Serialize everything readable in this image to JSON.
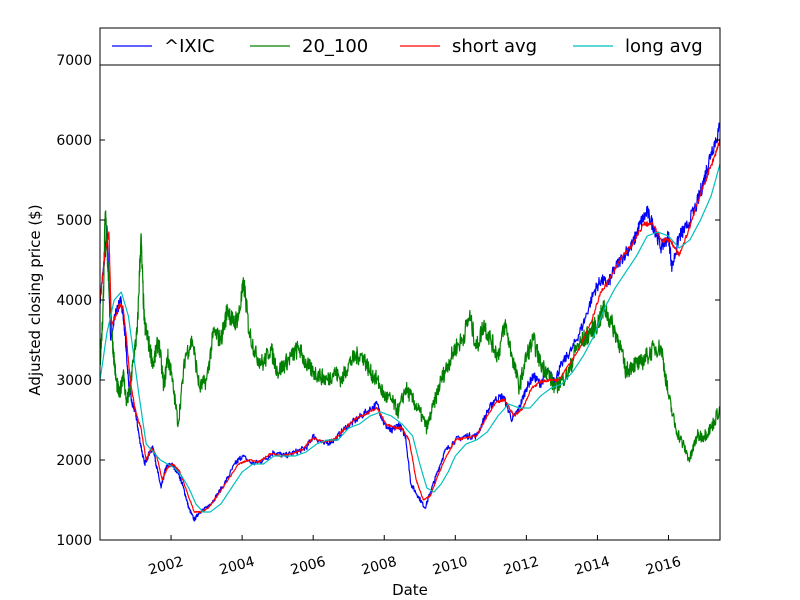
{
  "chart_data": {
    "type": "line",
    "title": "",
    "xlabel": "Date",
    "ylabel": "Adjusted closing price ($)",
    "xlim": [
      2000.0,
      2017.45
    ],
    "ylim": [
      1000,
      7000
    ],
    "x_ticks": [
      2002,
      2004,
      2006,
      2008,
      2010,
      2012,
      2014,
      2016
    ],
    "x_tick_labels": [
      "2002",
      "2004",
      "2006",
      "2008",
      "2010",
      "2012",
      "2014",
      "2016"
    ],
    "y_ticks": [
      1000,
      2000,
      3000,
      4000,
      5000,
      6000,
      7000
    ],
    "y_tick_labels": [
      "1000",
      "2000",
      "3000",
      "4000",
      "5000",
      "6000",
      "7000"
    ],
    "grid": false,
    "legend_position": "top",
    "series": [
      {
        "name": "^IXIC",
        "color": "#0000ff",
        "x": [
          2000.0,
          2000.15,
          2000.2,
          2000.3,
          2000.42,
          2000.5,
          2000.6,
          2000.7,
          2000.8,
          2000.9,
          2001.0,
          2001.1,
          2001.25,
          2001.4,
          2001.5,
          2001.6,
          2001.72,
          2001.85,
          2002.0,
          2002.2,
          2002.35,
          2002.5,
          2002.65,
          2002.8,
          2003.0,
          2003.2,
          2003.5,
          2003.8,
          2004.0,
          2004.3,
          2004.6,
          2004.9,
          2005.2,
          2005.5,
          2005.8,
          2006.0,
          2006.3,
          2006.6,
          2006.9,
          2007.2,
          2007.5,
          2007.8,
          2008.0,
          2008.2,
          2008.4,
          2008.6,
          2008.75,
          2008.95,
          2009.15,
          2009.3,
          2009.5,
          2009.7,
          2010.0,
          2010.3,
          2010.6,
          2010.9,
          2011.1,
          2011.35,
          2011.6,
          2011.8,
          2012.0,
          2012.2,
          2012.4,
          2012.6,
          2012.8,
          2013.0,
          2013.3,
          2013.6,
          2013.9,
          2014.1,
          2014.3,
          2014.5,
          2014.8,
          2015.0,
          2015.2,
          2015.4,
          2015.6,
          2015.8,
          2016.0,
          2016.1,
          2016.3,
          2016.5,
          2016.8,
          2017.0,
          2017.2,
          2017.45
        ],
        "values": [
          4000,
          4600,
          4900,
          3500,
          3800,
          3900,
          4000,
          3600,
          3000,
          2700,
          2600,
          2300,
          1950,
          2100,
          2150,
          1900,
          1650,
          1900,
          1950,
          1850,
          1650,
          1400,
          1250,
          1350,
          1400,
          1500,
          1700,
          1950,
          2050,
          1950,
          2000,
          2100,
          2050,
          2100,
          2150,
          2300,
          2200,
          2250,
          2400,
          2500,
          2600,
          2700,
          2450,
          2350,
          2450,
          2300,
          1700,
          1550,
          1400,
          1600,
          1850,
          2100,
          2250,
          2300,
          2300,
          2600,
          2750,
          2800,
          2500,
          2650,
          2900,
          3050,
          2950,
          3100,
          3000,
          3200,
          3400,
          3700,
          4100,
          4250,
          4200,
          4400,
          4600,
          4700,
          4950,
          5100,
          4900,
          4650,
          4800,
          4400,
          4800,
          4900,
          5200,
          5500,
          5850,
          6150
        ]
      },
      {
        "name": "20_100",
        "color": "#008000",
        "x": [
          2000.0,
          2000.08,
          2000.15,
          2000.25,
          2000.35,
          2000.45,
          2000.55,
          2000.65,
          2000.75,
          2000.85,
          2000.95,
          2001.05,
          2001.15,
          2001.25,
          2001.35,
          2001.5,
          2001.65,
          2001.8,
          2001.9,
          2002.0,
          2002.2,
          2002.4,
          2002.6,
          2002.8,
          2003.0,
          2003.2,
          2003.4,
          2003.6,
          2003.75,
          2003.9,
          2004.05,
          2004.2,
          2004.4,
          2004.6,
          2004.8,
          2005.0,
          2005.2,
          2005.4,
          2005.6,
          2005.8,
          2006.0,
          2006.2,
          2006.4,
          2006.6,
          2006.8,
          2007.0,
          2007.2,
          2007.4,
          2007.6,
          2007.8,
          2008.0,
          2008.2,
          2008.4,
          2008.6,
          2008.8,
          2009.0,
          2009.2,
          2009.4,
          2009.6,
          2009.8,
          2010.0,
          2010.2,
          2010.4,
          2010.6,
          2010.8,
          2011.0,
          2011.2,
          2011.4,
          2011.6,
          2011.8,
          2012.0,
          2012.2,
          2012.4,
          2012.6,
          2012.8,
          2013.0,
          2013.2,
          2013.4,
          2013.6,
          2013.8,
          2014.0,
          2014.2,
          2014.4,
          2014.6,
          2014.8,
          2015.0,
          2015.2,
          2015.4,
          2015.6,
          2015.8,
          2016.0,
          2016.2,
          2016.4,
          2016.6,
          2016.8,
          2017.0,
          2017.2,
          2017.45
        ],
        "values": [
          3200,
          3800,
          5100,
          4200,
          3500,
          3000,
          2800,
          3100,
          2700,
          2900,
          3300,
          3600,
          4800,
          3700,
          3500,
          3200,
          3500,
          2900,
          3300,
          3100,
          2450,
          3300,
          3500,
          2900,
          3000,
          3600,
          3500,
          3900,
          3700,
          3800,
          4200,
          3600,
          3300,
          3200,
          3400,
          3100,
          3200,
          3300,
          3400,
          3200,
          3100,
          3050,
          3000,
          3100,
          3000,
          3200,
          3300,
          3300,
          3100,
          3000,
          2800,
          2750,
          2600,
          2900,
          2750,
          2600,
          2400,
          2700,
          3000,
          3200,
          3400,
          3500,
          3800,
          3400,
          3700,
          3500,
          3300,
          3700,
          3300,
          2900,
          3300,
          3500,
          3200,
          3100,
          2900,
          3000,
          3100,
          3400,
          3500,
          3600,
          3700,
          3900,
          3700,
          3500,
          3100,
          3200,
          3200,
          3300,
          3400,
          3400,
          2800,
          2400,
          2200,
          2000,
          2300,
          2300,
          2400,
          2650
        ]
      },
      {
        "name": "short avg",
        "color": "#ff0000",
        "x": [
          2000.0,
          2000.15,
          2000.25,
          2000.32,
          2000.45,
          2000.55,
          2000.65,
          2000.75,
          2000.85,
          2001.0,
          2001.15,
          2001.3,
          2001.45,
          2001.6,
          2001.75,
          2001.9,
          2002.05,
          2002.25,
          2002.45,
          2002.65,
          2002.85,
          2003.05,
          2003.3,
          2003.6,
          2003.9,
          2004.2,
          2004.5,
          2004.8,
          2005.1,
          2005.4,
          2005.7,
          2006.0,
          2006.3,
          2006.6,
          2006.9,
          2007.2,
          2007.5,
          2007.8,
          2008.05,
          2008.3,
          2008.5,
          2008.7,
          2008.9,
          2009.1,
          2009.3,
          2009.5,
          2009.75,
          2010.0,
          2010.3,
          2010.6,
          2010.9,
          2011.15,
          2011.4,
          2011.65,
          2011.9,
          2012.15,
          2012.4,
          2012.65,
          2012.9,
          2013.2,
          2013.5,
          2013.8,
          2014.1,
          2014.4,
          2014.7,
          2015.0,
          2015.3,
          2015.55,
          2015.8,
          2016.05,
          2016.3,
          2016.55,
          2016.8,
          2017.05,
          2017.3,
          2017.45
        ],
        "values": [
          4000,
          4600,
          4850,
          3700,
          3800,
          3950,
          3900,
          3500,
          3000,
          2600,
          2400,
          2000,
          2150,
          2050,
          1750,
          1900,
          1950,
          1850,
          1600,
          1350,
          1350,
          1400,
          1550,
          1750,
          1950,
          2000,
          1980,
          2080,
          2050,
          2080,
          2130,
          2280,
          2220,
          2260,
          2400,
          2520,
          2580,
          2650,
          2450,
          2400,
          2400,
          2250,
          1750,
          1500,
          1550,
          1800,
          2050,
          2250,
          2280,
          2300,
          2550,
          2720,
          2750,
          2550,
          2650,
          2900,
          2980,
          3000,
          3000,
          3200,
          3400,
          3700,
          4100,
          4300,
          4550,
          4700,
          4950,
          4950,
          4750,
          4750,
          4550,
          4850,
          5200,
          5500,
          5800,
          6000
        ]
      },
      {
        "name": "long avg",
        "color": "#00bfbf",
        "x": [
          2000.0,
          2000.2,
          2000.4,
          2000.6,
          2000.8,
          2000.95,
          2001.1,
          2001.3,
          2001.5,
          2001.7,
          2001.9,
          2002.1,
          2002.3,
          2002.5,
          2002.7,
          2002.9,
          2003.1,
          2003.4,
          2003.7,
          2004.0,
          2004.3,
          2004.6,
          2004.9,
          2005.2,
          2005.5,
          2005.8,
          2006.1,
          2006.4,
          2006.7,
          2007.0,
          2007.3,
          2007.6,
          2007.9,
          2008.2,
          2008.5,
          2008.8,
          2009.0,
          2009.2,
          2009.4,
          2009.6,
          2009.8,
          2010.0,
          2010.3,
          2010.6,
          2010.9,
          2011.2,
          2011.5,
          2011.8,
          2012.1,
          2012.4,
          2012.7,
          2013.0,
          2013.3,
          2013.6,
          2013.9,
          2014.2,
          2014.5,
          2014.8,
          2015.1,
          2015.4,
          2015.7,
          2016.0,
          2016.3,
          2016.6,
          2016.9,
          2017.2,
          2017.45
        ],
        "values": [
          3000,
          3600,
          4000,
          4100,
          3800,
          3300,
          2800,
          2200,
          2100,
          2000,
          1950,
          1900,
          1800,
          1650,
          1450,
          1350,
          1350,
          1450,
          1650,
          1850,
          1950,
          1950,
          2050,
          2050,
          2050,
          2100,
          2200,
          2250,
          2250,
          2400,
          2450,
          2550,
          2600,
          2550,
          2450,
          2300,
          1950,
          1650,
          1600,
          1700,
          1850,
          2050,
          2200,
          2250,
          2350,
          2550,
          2700,
          2650,
          2650,
          2800,
          2900,
          2950,
          3100,
          3300,
          3550,
          3900,
          4150,
          4350,
          4550,
          4800,
          4850,
          4800,
          4650,
          4750,
          5000,
          5300,
          5700
        ]
      }
    ]
  }
}
